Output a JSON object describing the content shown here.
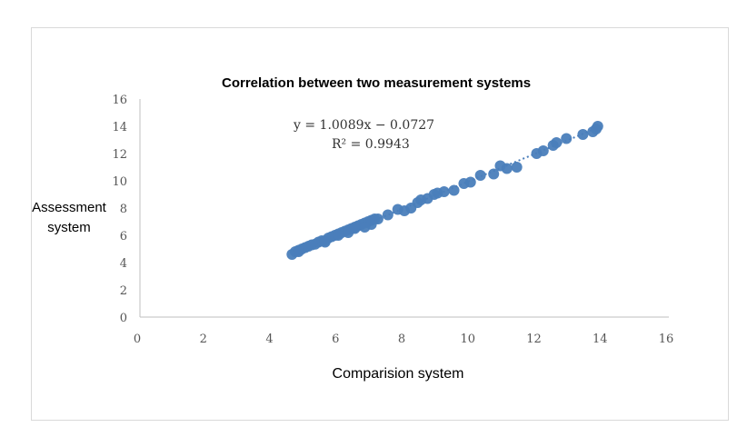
{
  "chart_data": {
    "type": "scatter",
    "title": "Correlation between two measurement systems",
    "xlabel": "Comparision system",
    "ylabel_line1": "Assessment",
    "ylabel_line2": "system",
    "xlim": [
      0,
      16
    ],
    "ylim": [
      0,
      16
    ],
    "xticks": [
      0,
      2,
      4,
      6,
      8,
      10,
      12,
      14,
      16
    ],
    "yticks": [
      0,
      2,
      4,
      6,
      8,
      10,
      12,
      14,
      16
    ],
    "grid": false,
    "legend": "none",
    "point_color": "#4a7ebb",
    "trendline": {
      "type": "linear",
      "style": "dotted",
      "slope": 1.0089,
      "intercept": -0.0727,
      "r_squared": 0.9943,
      "equation_text": "y = 1.0089x − 0.0727",
      "r2_text": "R² = 0.9943"
    },
    "series": [
      {
        "x": [
          4.6,
          4.7,
          4.8,
          4.9,
          5.0,
          5.1,
          5.2,
          5.3,
          5.4,
          5.5,
          5.6,
          5.7,
          5.8,
          5.9,
          6.0,
          6.1,
          6.2,
          6.3,
          6.4,
          6.5,
          6.6,
          6.7,
          6.8,
          6.9,
          7.0,
          7.1,
          7.2,
          6.0,
          6.5,
          7.0,
          4.8,
          5.6,
          6.3,
          6.8,
          7.5,
          7.8,
          8.0,
          8.2,
          8.4,
          8.5,
          8.7,
          8.9,
          9.0,
          9.2,
          9.5,
          9.8,
          10.0,
          10.3,
          10.7,
          10.9,
          11.1,
          11.4,
          12.0,
          12.2,
          12.5,
          12.6,
          12.9,
          13.4,
          13.7,
          13.8,
          13.85
        ],
        "y": [
          4.6,
          4.8,
          4.9,
          5.0,
          5.1,
          5.2,
          5.3,
          5.35,
          5.5,
          5.6,
          5.6,
          5.8,
          5.9,
          6.0,
          6.1,
          6.2,
          6.3,
          6.4,
          6.5,
          6.6,
          6.7,
          6.8,
          6.9,
          7.0,
          7.1,
          7.2,
          7.2,
          6.0,
          6.5,
          6.8,
          4.8,
          5.5,
          6.2,
          6.6,
          7.5,
          7.9,
          7.8,
          8.0,
          8.4,
          8.6,
          8.7,
          9.0,
          9.1,
          9.2,
          9.3,
          9.8,
          9.9,
          10.4,
          10.5,
          11.1,
          10.9,
          11.0,
          12.0,
          12.2,
          12.6,
          12.8,
          13.1,
          13.4,
          13.6,
          13.8,
          14.0
        ]
      }
    ]
  }
}
